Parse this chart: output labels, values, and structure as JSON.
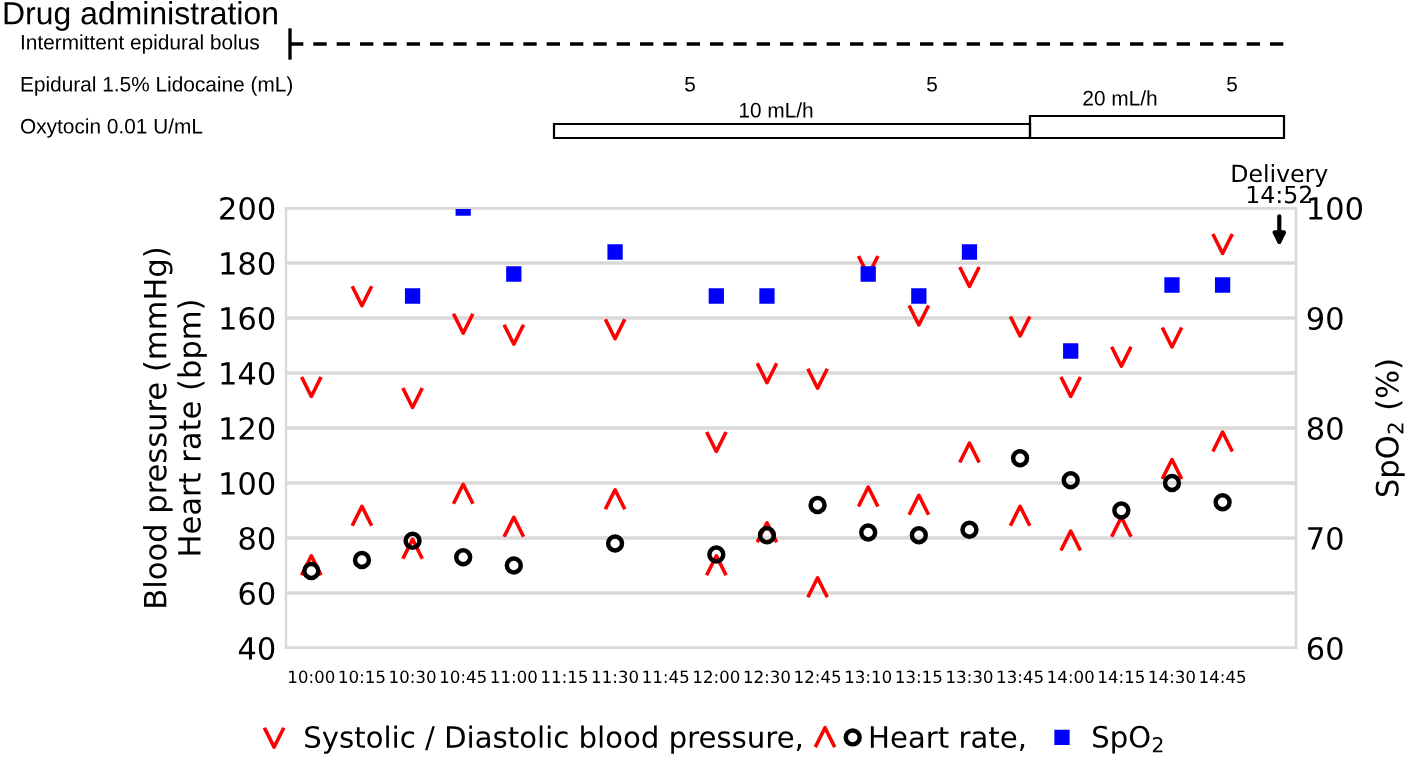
{
  "chart_data": {
    "type": "scatter",
    "categories": [
      "10:00",
      "10:15",
      "10:30",
      "10:45",
      "11:00",
      "11:15",
      "11:30",
      "11:45",
      "12:00",
      "12:30",
      "12:45",
      "13:10",
      "13:15",
      "13:30",
      "13:45",
      "14:00",
      "14:15",
      "14:30",
      "14:45"
    ],
    "series": [
      {
        "name": "Systolic / Diastolic blood pressure,",
        "color": "#ff0000",
        "marker": "cross",
        "values": [
          135,
          168,
          131,
          158,
          154,
          null,
          156,
          null,
          115,
          140,
          138,
          179,
          161,
          175,
          157,
          135,
          146,
          153,
          187
        ]
      },
      {
        "color": "#ff0000",
        "marker": "cross",
        "values": [
          70,
          88,
          76,
          96,
          84,
          null,
          94,
          null,
          70,
          82,
          62,
          95,
          92,
          111,
          88,
          79,
          84,
          105,
          115
        ]
      },
      {
        "name": "Heart rate,",
        "color": "#000000",
        "marker": "circle",
        "values": [
          68,
          72,
          79,
          73,
          70,
          null,
          78,
          null,
          74,
          81,
          92,
          82,
          81,
          83,
          109,
          101,
          90,
          100,
          93
        ]
      },
      {
        "name": "SpO$_{2}$",
        "color": "#0000ff",
        "marker": "square",
        "axis": "y2",
        "values": [
          null,
          null,
          92,
          100,
          94,
          null,
          96,
          null,
          92,
          92,
          null,
          94,
          92,
          96,
          null,
          87,
          null,
          93,
          93
        ]
      }
    ],
    "ylabel": "Blood pressure (mmHg)\nHeart rate (bpm)",
    "y2label": "SpO$_{2}$ (%)",
    "ylim": [
      40,
      200
    ],
    "yticks": [
      40,
      60,
      80,
      100,
      120,
      140,
      160,
      180,
      200
    ],
    "y2lim": [
      60,
      100
    ],
    "y2ticks": [
      60,
      70,
      80,
      90,
      100
    ],
    "grid": "y",
    "legend": "bottom",
    "annotations": [
      "Drug administration",
      "Intermittent epidural bolus",
      "Epidural 1.5% Lidocaine (mL)",
      "Oxytocin 0.01 U/mL",
      "5",
      "5",
      "5",
      "10 mL/h",
      "20 mL/h",
      "Delivery\n14:52"
    ]
  }
}
